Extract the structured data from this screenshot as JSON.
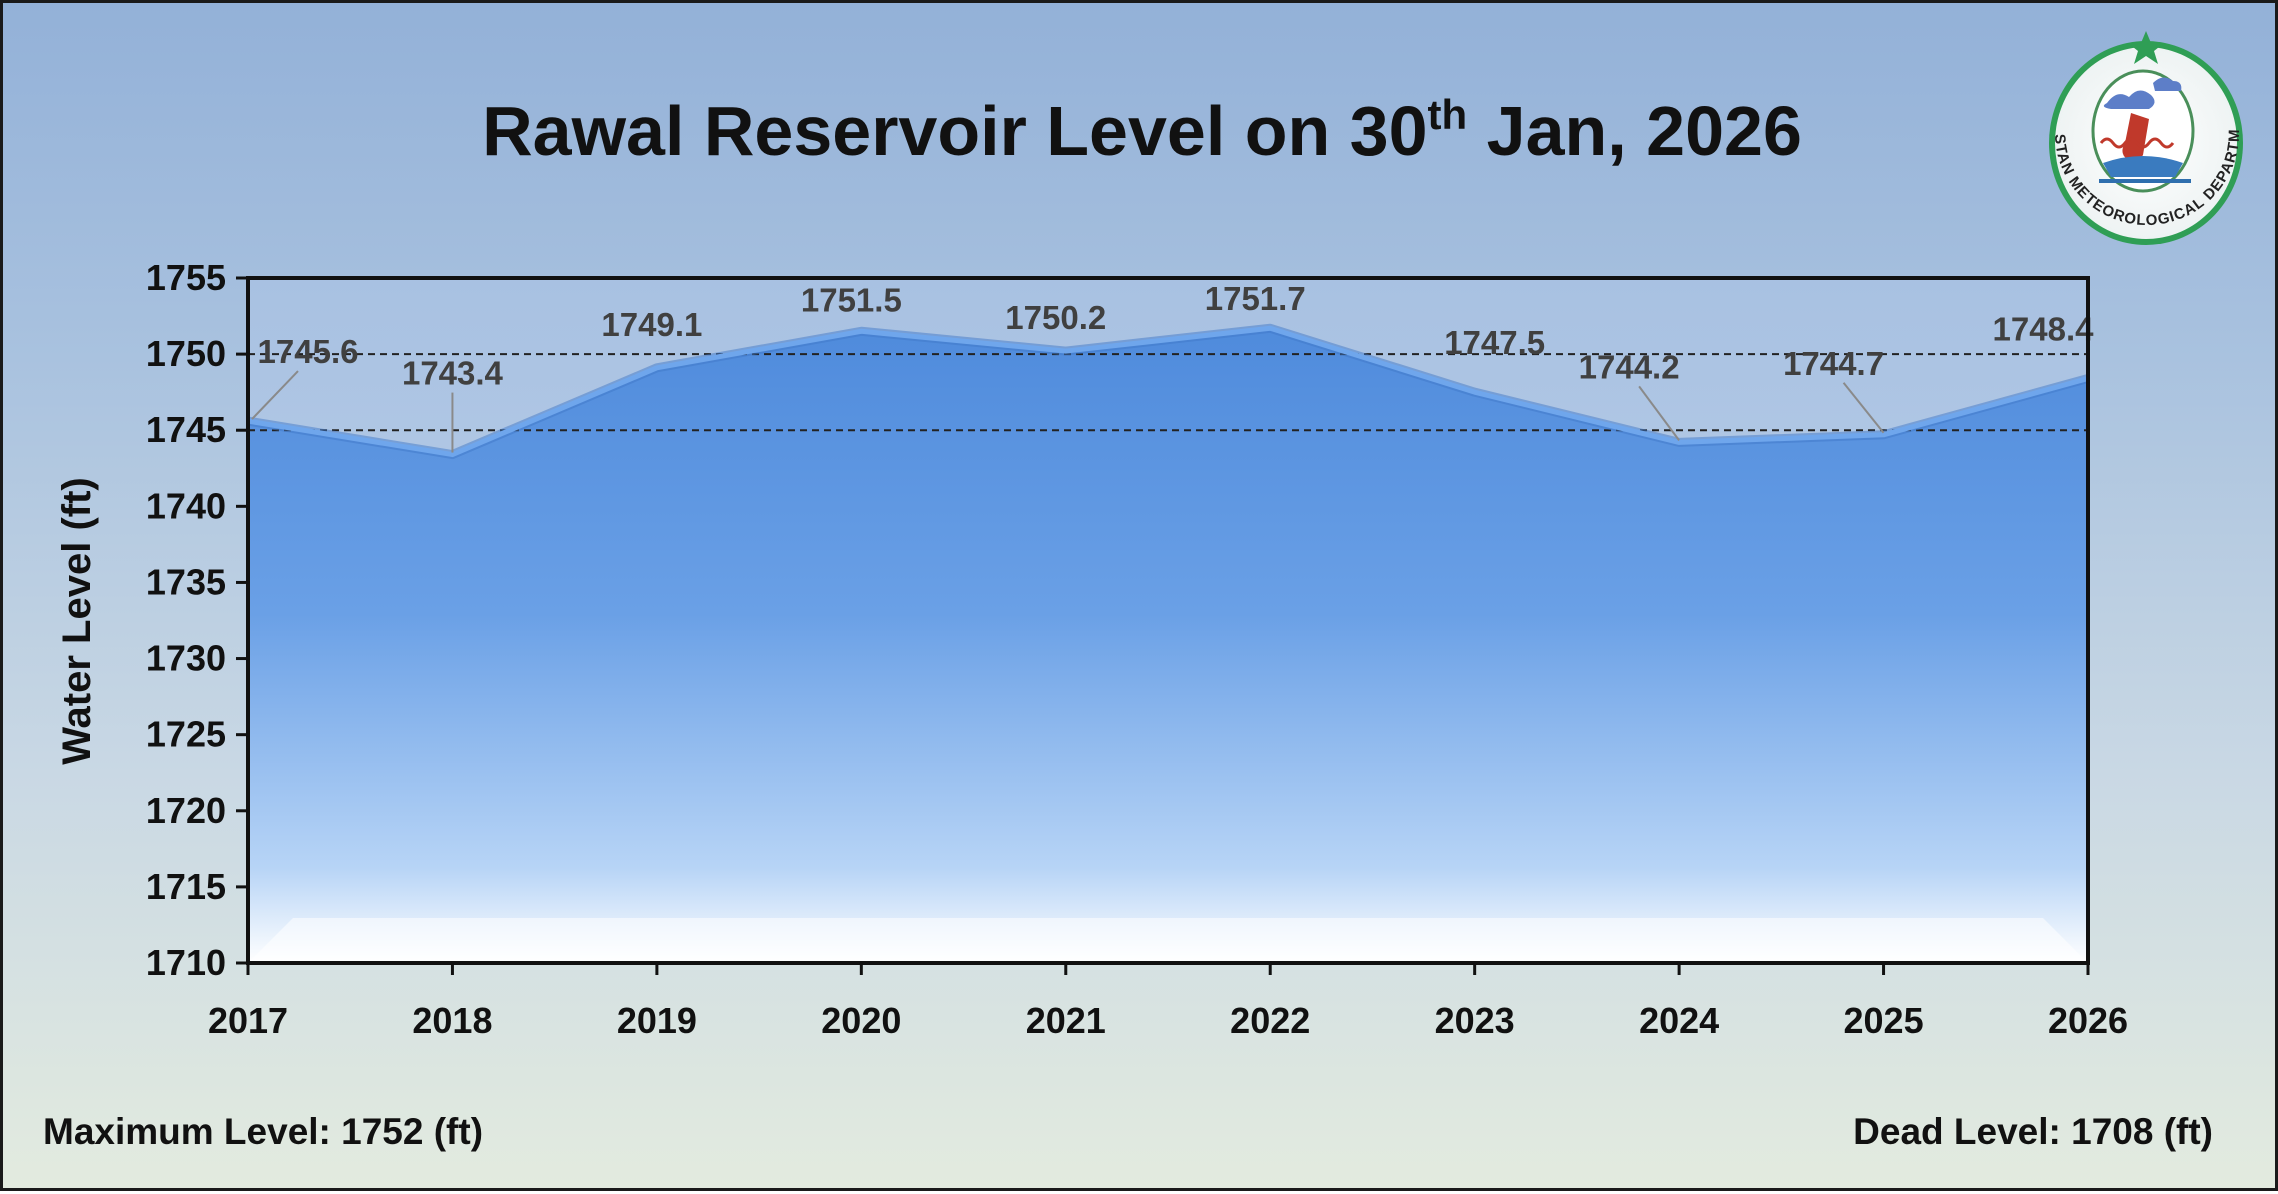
{
  "title": {
    "main": "Rawal Reservoir Level on 30",
    "superscript": "th",
    "rest": " Jan, 2026"
  },
  "logo": {
    "caption": "PAKISTAN METEOROLOGICAL DEPARTMENT"
  },
  "footer": {
    "max_level": "Maximum Level: 1752 (ft)",
    "dead_level": "Dead Level: 1708 (ft)"
  },
  "colors": {
    "area_top": "#5591df",
    "area_bottom": "#ffffff",
    "line": "#6fa6ec",
    "guide": "#222222"
  },
  "chart_data": {
    "type": "area",
    "x": [
      "2017",
      "2018",
      "2019",
      "2020",
      "2021",
      "2022",
      "2023",
      "2024",
      "2025",
      "2026"
    ],
    "series": [
      {
        "values": [
          1745.6,
          1743.4,
          1749.1,
          1751.5,
          1750.2,
          1751.7,
          1747.5,
          1744.2,
          1744.7,
          1748.4
        ]
      }
    ],
    "data_labels": [
      "1745.6",
      "1743.4",
      "1749.1",
      "1751.5",
      "1750.2",
      "1751.7",
      "1747.5",
      "1744.2",
      "1744.7",
      "1748.4"
    ],
    "ylabel": "Water Level (ft)",
    "xlabel": "",
    "ylim": [
      1710,
      1755
    ],
    "yticks": [
      "1710",
      "1715",
      "1720",
      "1725",
      "1730",
      "1735",
      "1740",
      "1745",
      "1750",
      "1755"
    ],
    "reference_lines": [
      1745,
      1750
    ],
    "grid": false,
    "legend": "none"
  }
}
